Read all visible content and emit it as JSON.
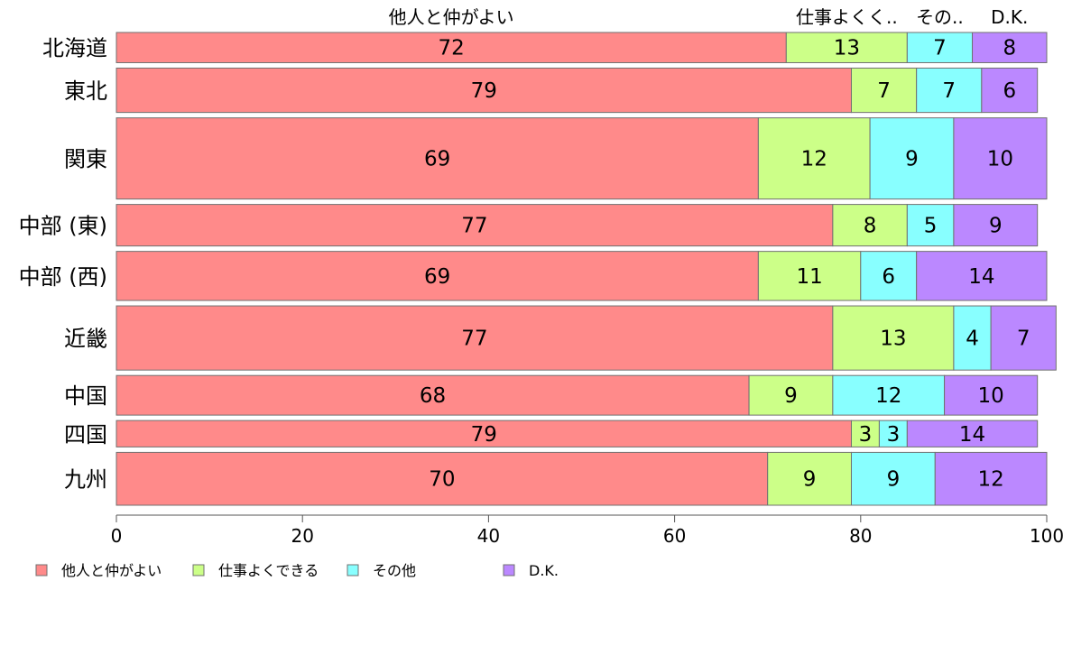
{
  "chart_data": {
    "type": "bar",
    "orientation": "horizontal",
    "stacked": true,
    "categories": [
      "北海道",
      "東北",
      "関東",
      "中部 (東)",
      "中部 (西)",
      "近畿",
      "中国",
      "四国",
      "九州"
    ],
    "bar_thickness_weights": [
      32,
      47,
      86,
      44,
      52,
      68,
      42,
      28,
      56
    ],
    "series": [
      {
        "name": "他人と仲がよい",
        "values": [
          72,
          79,
          69,
          77,
          69,
          77,
          68,
          79,
          70
        ],
        "color": "#FF8A8A"
      },
      {
        "name": "仕事よくできる",
        "values": [
          13,
          7,
          12,
          8,
          11,
          13,
          9,
          3,
          9
        ],
        "color": "#CCFF88"
      },
      {
        "name": "その他",
        "values": [
          7,
          7,
          9,
          5,
          6,
          4,
          12,
          3,
          9
        ],
        "color": "#88FFFF"
      },
      {
        "name": "D.K.",
        "values": [
          8,
          6,
          10,
          9,
          14,
          7,
          10,
          14,
          12
        ],
        "color": "#BB88FF"
      }
    ],
    "top_labels": [
      "他人と仲がよい",
      "仕事よくく..",
      "その..",
      "D.K."
    ],
    "xlim": [
      0,
      100
    ],
    "xticks": [
      0,
      20,
      40,
      60,
      80,
      100
    ],
    "xlabel": "",
    "ylabel": "",
    "title": "",
    "legend": {
      "position": "bottom-left",
      "labels": [
        "他人と仲がよい",
        "仕事よくできる",
        "その他",
        "D.K."
      ]
    },
    "grid": false
  }
}
